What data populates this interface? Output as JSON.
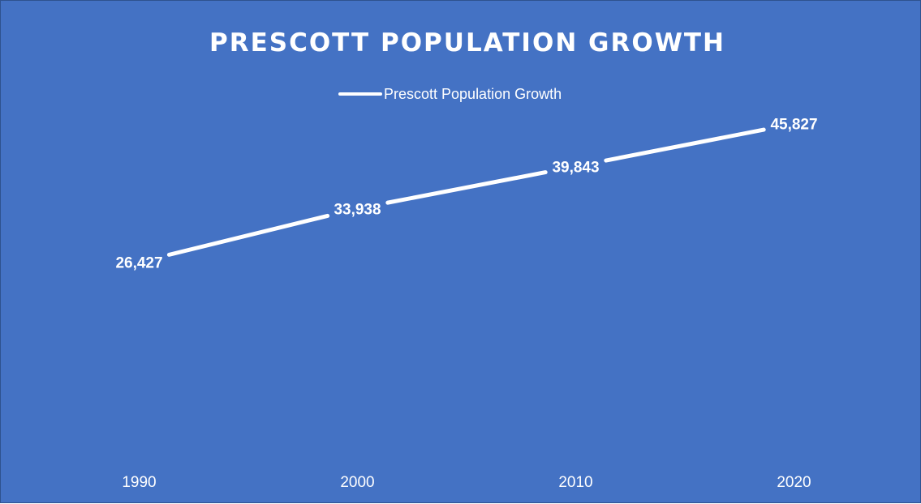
{
  "chart_data": {
    "type": "line",
    "title": "PRESCOTT POPULATION GROWTH",
    "categories": [
      "1990",
      "2000",
      "2010",
      "2020"
    ],
    "series": [
      {
        "name": "Prescott Population Growth",
        "values": [
          26427,
          33938,
          39843,
          45827
        ],
        "labels": [
          "26,427",
          "33,938",
          "39,843",
          "45,827"
        ]
      }
    ],
    "xlabel": "",
    "ylabel": "",
    "ylim": [
      0,
      60000
    ],
    "grid": false,
    "legend": "top",
    "drop_lines": true
  },
  "colors": {
    "background": "#4472c4",
    "line": "#ffffff",
    "text": "#ffffff"
  }
}
